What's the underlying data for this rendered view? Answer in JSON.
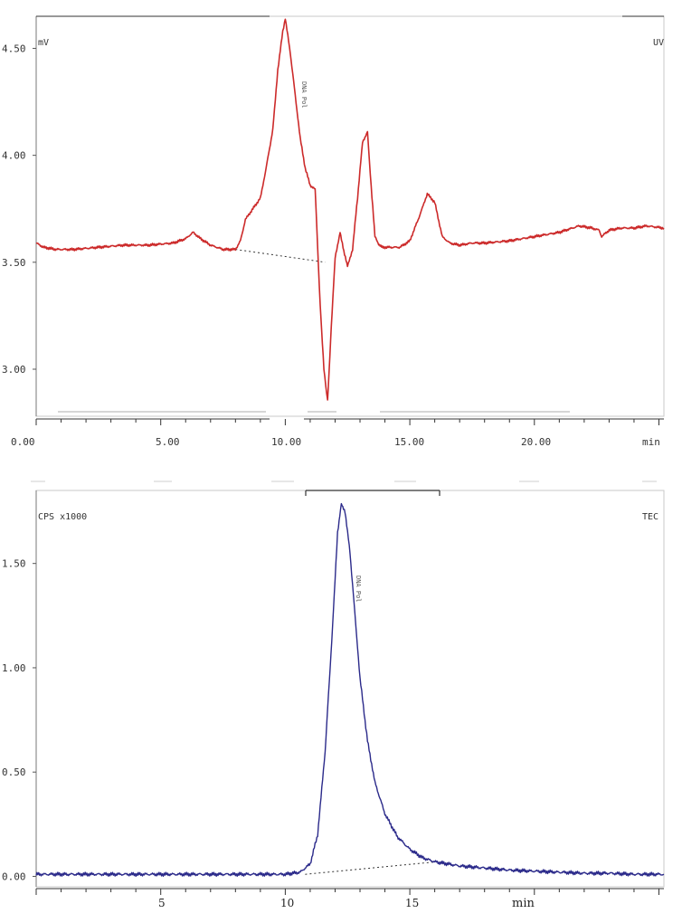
{
  "chart_data": [
    {
      "type": "line",
      "title": "",
      "unit_label": "mV",
      "detector_label": "UV",
      "xlabel": "min",
      "ylim": [
        2.78,
        4.65
      ],
      "xlim": [
        0,
        25.2
      ],
      "y_ticks": [
        2.5,
        3.0,
        3.5,
        4.0,
        4.5
      ],
      "y_tick_labels": [
        "3.00",
        "3.50",
        "4.00",
        "4.50"
      ],
      "x_tick_labels": [
        "0.00",
        "5.00",
        "10.00",
        "15.00",
        "20.00"
      ],
      "peak_label": "DNA Pol",
      "color": "#cc2a2a",
      "series": [
        {
          "x": [
            0,
            0.3,
            0.8,
            1.5,
            2.5,
            3.5,
            4.5,
            5.5,
            6.0,
            6.3,
            6.6,
            7.0,
            7.5,
            8.0,
            8.2,
            8.4,
            8.7,
            9.0,
            9.2,
            9.5,
            9.7,
            9.9,
            10.0,
            10.2,
            10.4,
            10.6,
            10.8,
            11.0,
            11.2,
            11.4,
            11.55,
            11.7,
            11.85,
            12.0,
            12.2,
            12.35,
            12.5,
            12.7,
            12.9,
            13.1,
            13.3,
            13.45,
            13.6,
            13.75,
            13.9,
            14.2,
            14.6,
            15.0,
            15.4,
            15.7,
            16.0,
            16.3,
            16.6,
            17.0,
            17.5,
            18.0,
            19.0,
            20.0,
            21.0,
            21.8,
            22.3,
            22.6,
            22.7,
            23.0,
            23.5,
            24.0,
            24.5,
            25.2
          ],
          "y": [
            3.59,
            3.57,
            3.56,
            3.56,
            3.57,
            3.58,
            3.58,
            3.59,
            3.61,
            3.64,
            3.61,
            3.58,
            3.56,
            3.56,
            3.6,
            3.7,
            3.75,
            3.8,
            3.92,
            4.12,
            4.4,
            4.58,
            4.64,
            4.48,
            4.28,
            4.08,
            3.94,
            3.86,
            3.84,
            3.3,
            3.0,
            2.85,
            3.2,
            3.52,
            3.64,
            3.55,
            3.48,
            3.56,
            3.8,
            4.06,
            4.11,
            3.85,
            3.62,
            3.58,
            3.57,
            3.57,
            3.57,
            3.6,
            3.72,
            3.82,
            3.78,
            3.62,
            3.59,
            3.58,
            3.59,
            3.59,
            3.6,
            3.62,
            3.64,
            3.67,
            3.66,
            3.65,
            3.62,
            3.65,
            3.66,
            3.66,
            3.67,
            3.66
          ]
        }
      ],
      "baseline": {
        "x": [
          8.0,
          11.6
        ],
        "y": [
          3.56,
          3.5
        ]
      }
    },
    {
      "type": "line",
      "title": "",
      "unit_label": "CPS x1000",
      "detector_label": "TEC",
      "xlabel": "min",
      "ylim": [
        -0.05,
        1.85
      ],
      "xlim": [
        0,
        25.2
      ],
      "y_ticks": [
        0.0,
        0.5,
        1.0,
        1.5
      ],
      "y_tick_labels": [
        "0.00",
        "0.50",
        "1.00",
        "1.50"
      ],
      "x_tick_labels": [
        "5",
        "10",
        "15",
        "min"
      ],
      "peak_label": "DNA Pol",
      "color": "#2b2a8a",
      "series": [
        {
          "x": [
            0,
            2,
            4,
            6,
            8,
            10,
            10.6,
            11.0,
            11.3,
            11.6,
            11.9,
            12.1,
            12.25,
            12.4,
            12.6,
            12.8,
            13.0,
            13.3,
            13.6,
            14.0,
            14.5,
            15.0,
            15.5,
            16.0,
            17.0,
            18.0,
            19.0,
            20.0,
            21.0,
            22.0,
            23.0,
            24.0,
            25.2
          ],
          "y": [
            0.01,
            0.01,
            0.01,
            0.01,
            0.01,
            0.01,
            0.02,
            0.06,
            0.2,
            0.6,
            1.2,
            1.65,
            1.79,
            1.75,
            1.55,
            1.25,
            0.95,
            0.65,
            0.45,
            0.3,
            0.19,
            0.13,
            0.09,
            0.07,
            0.05,
            0.04,
            0.03,
            0.025,
            0.02,
            0.015,
            0.015,
            0.01,
            0.01
          ]
        }
      ],
      "baseline": {
        "x": [
          10.8,
          16.1
        ],
        "y": [
          0.01,
          0.07
        ]
      }
    }
  ]
}
